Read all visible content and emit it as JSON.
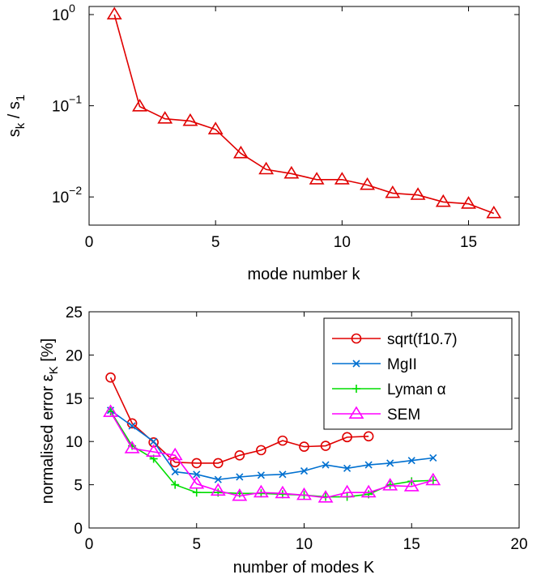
{
  "chart_data": [
    {
      "type": "line",
      "title": "",
      "xlabel": "mode number k",
      "ylabel_main": "s",
      "ylabel_sub_k": "k",
      "ylabel_sep": " / s",
      "ylabel_sub_1": "1",
      "xlim": [
        0,
        17
      ],
      "ylim": [
        0.004,
        1.0
      ],
      "yscale": "log",
      "grid": false,
      "x_ticks": [
        0,
        5,
        10,
        15
      ],
      "y_ticks": [
        {
          "value": 1,
          "base": "10",
          "exp": "0"
        },
        {
          "value": 0.1,
          "base": "10",
          "exp": "−1"
        },
        {
          "value": 0.01,
          "base": "10",
          "exp": "−2"
        }
      ],
      "series": [
        {
          "color": "#e00000",
          "marker": "triangle",
          "x": [
            1,
            2,
            3,
            4,
            5,
            6,
            7,
            8,
            9,
            10,
            11,
            12,
            13,
            14,
            15,
            16
          ],
          "values": [
            1.0,
            0.098,
            0.072,
            0.068,
            0.055,
            0.03,
            0.02,
            0.018,
            0.0155,
            0.0155,
            0.0135,
            0.011,
            0.0105,
            0.0088,
            0.0084,
            0.0066
          ]
        }
      ]
    },
    {
      "type": "line",
      "title": "",
      "xlabel": "number of modes K",
      "ylabel_main": "normalised error ε",
      "ylabel_sub": "K",
      "ylabel_tail": " [%]",
      "xlim": [
        0,
        20
      ],
      "ylim": [
        0,
        25
      ],
      "grid": false,
      "legend_position": "top-right",
      "x_ticks": [
        0,
        5,
        10,
        15,
        20
      ],
      "y_ticks": [
        0,
        5,
        10,
        15,
        20,
        25
      ],
      "series": [
        {
          "name": "sqrt(f10.7)",
          "color": "#e00000",
          "marker": "circle",
          "x": [
            1,
            2,
            3,
            4,
            5,
            6,
            7,
            8,
            9,
            10,
            11,
            12,
            13
          ],
          "values": [
            17.4,
            12.1,
            9.9,
            7.6,
            7.5,
            7.5,
            8.4,
            9.0,
            10.1,
            9.4,
            9.5,
            10.5,
            10.6
          ]
        },
        {
          "name": "MgII",
          "color": "#0070d0",
          "marker": "x",
          "x": [
            1,
            2,
            3,
            4,
            5,
            6,
            7,
            8,
            9,
            10,
            11,
            12,
            13,
            14,
            15,
            16
          ],
          "values": [
            13.6,
            11.8,
            10.0,
            6.5,
            6.2,
            5.6,
            5.9,
            6.1,
            6.2,
            6.6,
            7.3,
            6.9,
            7.3,
            7.5,
            7.8,
            8.1
          ]
        },
        {
          "name": "Lyman α",
          "color": "#00dd00",
          "marker": "plus",
          "x": [
            1,
            2,
            3,
            4,
            5,
            6,
            7,
            8,
            9,
            10,
            11,
            12,
            13,
            14,
            15,
            16
          ],
          "values": [
            13.5,
            9.5,
            8.0,
            5.0,
            4.1,
            4.1,
            4.0,
            4.0,
            3.9,
            3.8,
            3.6,
            3.6,
            3.9,
            5.0,
            5.4,
            5.5
          ]
        },
        {
          "name": "SEM",
          "color": "#ff00ff",
          "marker": "triangle",
          "x": [
            1,
            2,
            3,
            4,
            5,
            6,
            7,
            8,
            9,
            10,
            11,
            12,
            13,
            14,
            15,
            16
          ],
          "values": [
            13.4,
            9.2,
            8.8,
            8.4,
            5.1,
            4.3,
            3.7,
            4.1,
            4.0,
            3.8,
            3.5,
            4.1,
            4.1,
            4.9,
            4.8,
            5.5
          ]
        }
      ]
    }
  ]
}
